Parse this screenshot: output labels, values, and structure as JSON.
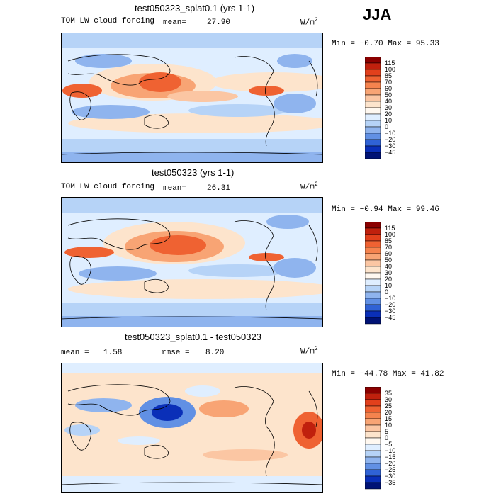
{
  "season": "JJA",
  "panels": [
    {
      "title": "test050323_splat0.1 (yrs 1-1)",
      "field_label": "TOM LW cloud forcing",
      "mean_label": "mean=",
      "mean_value": "27.90",
      "rmse_label": "",
      "rmse_value": "",
      "units": "W/m",
      "units_exp": "2",
      "minmax": "Min =  −0.70 Max =  95.33",
      "levels": [
        "115",
        "100",
        "85",
        "70",
        "60",
        "50",
        "40",
        "30",
        "20",
        "10",
        "0",
        "−10",
        "−20",
        "−30",
        "−45"
      ],
      "colors": [
        "#8b0000",
        "#c0200d",
        "#e2401c",
        "#ef6232",
        "#f5834e",
        "#f8a474",
        "#fbc6a3",
        "#fde4cc",
        "#fff8f0",
        "#dfeeff",
        "#b6d3f7",
        "#8fb4ee",
        "#6190e4",
        "#3062d5",
        "#0a2fb8",
        "#001275"
      ]
    },
    {
      "title": "test050323 (yrs 1-1)",
      "field_label": "TOM LW cloud forcing",
      "mean_label": "mean=",
      "mean_value": "26.31",
      "rmse_label": "",
      "rmse_value": "",
      "units": "W/m",
      "units_exp": "2",
      "minmax": "Min =  −0.94 Max =  99.46",
      "levels": [
        "115",
        "100",
        "85",
        "70",
        "60",
        "50",
        "40",
        "30",
        "20",
        "10",
        "0",
        "−10",
        "−20",
        "−30",
        "−45"
      ],
      "colors": [
        "#8b0000",
        "#c0200d",
        "#e2401c",
        "#ef6232",
        "#f5834e",
        "#f8a474",
        "#fbc6a3",
        "#fde4cc",
        "#fff8f0",
        "#dfeeff",
        "#b6d3f7",
        "#8fb4ee",
        "#6190e4",
        "#3062d5",
        "#0a2fb8",
        "#001275"
      ]
    },
    {
      "title": "test050323_splat0.1 - test050323",
      "field_label": "",
      "mean_label": "mean =",
      "mean_value": "1.58",
      "rmse_label": "rmse =",
      "rmse_value": "8.20",
      "units": "W/m",
      "units_exp": "2",
      "minmax": "Min = −44.78 Max =  41.82",
      "levels": [
        "35",
        "30",
        "25",
        "20",
        "15",
        "10",
        "5",
        "0",
        "−5",
        "−10",
        "−15",
        "−20",
        "−25",
        "−30",
        "−35"
      ],
      "colors": [
        "#8b0000",
        "#c0200d",
        "#e2401c",
        "#ef6232",
        "#f5834e",
        "#f8a474",
        "#fbc6a3",
        "#fde4cc",
        "#fff8f0",
        "#dfeeff",
        "#b6d3f7",
        "#8fb4ee",
        "#6190e4",
        "#3062d5",
        "#0a2fb8",
        "#001275"
      ]
    }
  ]
}
